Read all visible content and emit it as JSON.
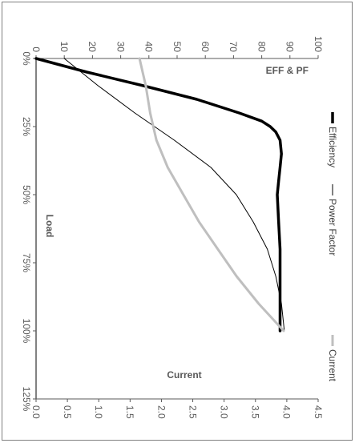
{
  "chart_data": {
    "type": "line",
    "orientation": "rotated-90-clockwise",
    "x": {
      "label": "Load",
      "ticks": [
        "0%",
        "25%",
        "50%",
        "75%",
        "100%",
        "125%"
      ],
      "range": [
        0,
        125
      ]
    },
    "y_left": {
      "label": "EFF & PF",
      "ticks": [
        "0",
        "10",
        "20",
        "30",
        "40",
        "50",
        "60",
        "70",
        "80",
        "90",
        "100"
      ],
      "range": [
        0,
        100
      ]
    },
    "y_right": {
      "label": "Current",
      "ticks": [
        "0.0",
        "0.5",
        "1.0",
        "1.5",
        "2.0",
        "2.5",
        "3.0",
        "3.5",
        "4.0",
        "4.5"
      ],
      "range": [
        0,
        4.5
      ]
    },
    "legend": {
      "placement": "right"
    },
    "series": [
      {
        "name": "Efficiency",
        "axis": "left",
        "color": "#000000",
        "points": [
          [
            0,
            0
          ],
          [
            5,
            18
          ],
          [
            10,
            38
          ],
          [
            15,
            57
          ],
          [
            20,
            72
          ],
          [
            23,
            80
          ],
          [
            25,
            83
          ],
          [
            27,
            85
          ],
          [
            30,
            86.5
          ],
          [
            35,
            87
          ],
          [
            40,
            86.5
          ],
          [
            45,
            86
          ],
          [
            50,
            85.5
          ],
          [
            60,
            86
          ],
          [
            70,
            86.5
          ],
          [
            80,
            86.5
          ],
          [
            90,
            86.5
          ],
          [
            100,
            86.5
          ]
        ]
      },
      {
        "name": "Power Factor",
        "axis": "left",
        "color": "#000000",
        "points": [
          [
            0,
            10
          ],
          [
            10,
            22
          ],
          [
            20,
            35
          ],
          [
            30,
            49
          ],
          [
            40,
            62
          ],
          [
            50,
            71
          ],
          [
            60,
            77
          ],
          [
            70,
            82
          ],
          [
            80,
            85
          ],
          [
            90,
            87
          ],
          [
            100,
            88
          ]
        ]
      },
      {
        "name": "Current",
        "axis": "right",
        "color": "#bfbfbf",
        "points": [
          [
            0,
            1.65
          ],
          [
            10,
            1.75
          ],
          [
            20,
            1.82
          ],
          [
            30,
            1.92
          ],
          [
            40,
            2.1
          ],
          [
            50,
            2.35
          ],
          [
            60,
            2.6
          ],
          [
            70,
            2.9
          ],
          [
            80,
            3.2
          ],
          [
            90,
            3.55
          ],
          [
            100,
            3.95
          ]
        ]
      }
    ]
  }
}
